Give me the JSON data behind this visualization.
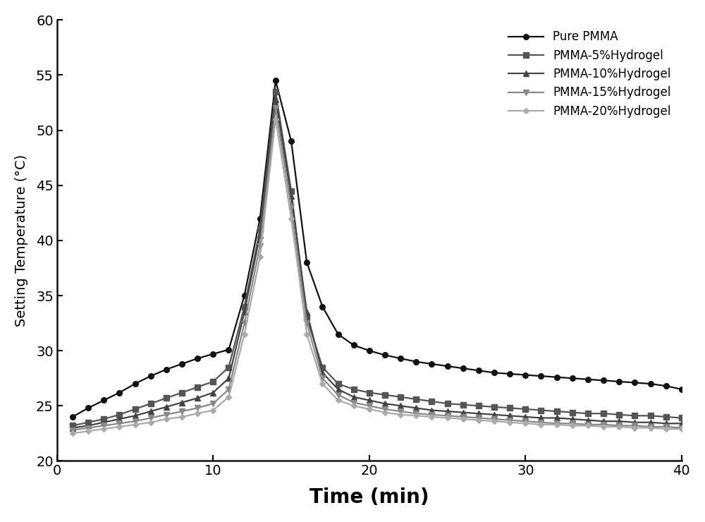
{
  "title": "",
  "xlabel": "Time (min)",
  "ylabel": "Setting Temperature (°C)",
  "xlim": [
    0,
    40
  ],
  "ylim": [
    20,
    60
  ],
  "xticks": [
    0,
    10,
    20,
    30,
    40
  ],
  "yticks": [
    20,
    25,
    30,
    35,
    40,
    45,
    50,
    55,
    60
  ],
  "series": [
    {
      "label": "Pure PMMA",
      "color": "#111111",
      "marker": "o",
      "markersize": 5.5,
      "linewidth": 1.6,
      "x": [
        1,
        2,
        3,
        4,
        5,
        6,
        7,
        8,
        9,
        10,
        11,
        12,
        13,
        14,
        15,
        16,
        17,
        18,
        19,
        20,
        21,
        22,
        23,
        24,
        25,
        26,
        27,
        28,
        29,
        30,
        31,
        32,
        33,
        34,
        35,
        36,
        37,
        38,
        39,
        40
      ],
      "y": [
        24.0,
        24.8,
        25.5,
        26.2,
        27.0,
        27.7,
        28.3,
        28.8,
        29.3,
        29.7,
        30.1,
        35.0,
        42.0,
        54.5,
        49.0,
        38.0,
        34.0,
        31.5,
        30.5,
        30.0,
        29.6,
        29.3,
        29.0,
        28.8,
        28.6,
        28.4,
        28.2,
        28.0,
        27.9,
        27.8,
        27.7,
        27.6,
        27.5,
        27.4,
        27.3,
        27.2,
        27.1,
        27.0,
        26.8,
        26.5
      ]
    },
    {
      "label": "PMMA-5%Hydrogel",
      "color": "#555555",
      "marker": "s",
      "markersize": 5.5,
      "linewidth": 1.6,
      "x": [
        1,
        2,
        3,
        4,
        5,
        6,
        7,
        8,
        9,
        10,
        11,
        12,
        13,
        14,
        15,
        16,
        17,
        18,
        19,
        20,
        21,
        22,
        23,
        24,
        25,
        26,
        27,
        28,
        29,
        30,
        31,
        32,
        33,
        34,
        35,
        36,
        37,
        38,
        39,
        40
      ],
      "y": [
        23.2,
        23.5,
        23.8,
        24.2,
        24.7,
        25.2,
        25.7,
        26.2,
        26.7,
        27.2,
        28.5,
        34.0,
        41.0,
        53.5,
        44.5,
        33.0,
        28.5,
        27.0,
        26.5,
        26.2,
        26.0,
        25.8,
        25.6,
        25.4,
        25.2,
        25.1,
        25.0,
        24.9,
        24.8,
        24.7,
        24.6,
        24.5,
        24.4,
        24.3,
        24.3,
        24.2,
        24.1,
        24.1,
        24.0,
        23.9
      ]
    },
    {
      "label": "PMMA-10%Hydrogel",
      "color": "#444444",
      "marker": "^",
      "markersize": 5.5,
      "linewidth": 1.6,
      "x": [
        1,
        2,
        3,
        4,
        5,
        6,
        7,
        8,
        9,
        10,
        11,
        12,
        13,
        14,
        15,
        16,
        17,
        18,
        19,
        20,
        21,
        22,
        23,
        24,
        25,
        26,
        27,
        28,
        29,
        30,
        31,
        32,
        33,
        34,
        35,
        36,
        37,
        38,
        39,
        40
      ],
      "y": [
        23.0,
        23.2,
        23.5,
        23.8,
        24.1,
        24.5,
        24.9,
        25.3,
        25.7,
        26.2,
        27.5,
        33.5,
        40.5,
        52.8,
        44.0,
        33.5,
        28.0,
        26.5,
        25.8,
        25.5,
        25.2,
        25.0,
        24.8,
        24.6,
        24.5,
        24.4,
        24.3,
        24.2,
        24.1,
        24.0,
        23.9,
        23.9,
        23.8,
        23.7,
        23.6,
        23.6,
        23.5,
        23.5,
        23.4,
        23.4
      ]
    },
    {
      "label": "PMMA-15%Hydrogel",
      "color": "#888888",
      "marker": "v",
      "markersize": 5.5,
      "linewidth": 1.6,
      "x": [
        1,
        2,
        3,
        4,
        5,
        6,
        7,
        8,
        9,
        10,
        11,
        12,
        13,
        14,
        15,
        16,
        17,
        18,
        19,
        20,
        21,
        22,
        23,
        24,
        25,
        26,
        27,
        28,
        29,
        30,
        31,
        32,
        33,
        34,
        35,
        36,
        37,
        38,
        39,
        40
      ],
      "y": [
        22.8,
        23.0,
        23.2,
        23.4,
        23.6,
        23.9,
        24.2,
        24.5,
        24.8,
        25.2,
        26.5,
        32.5,
        39.5,
        52.0,
        43.0,
        32.5,
        27.5,
        26.0,
        25.3,
        25.0,
        24.7,
        24.5,
        24.3,
        24.2,
        24.1,
        24.0,
        23.9,
        23.8,
        23.7,
        23.6,
        23.5,
        23.4,
        23.4,
        23.3,
        23.3,
        23.2,
        23.2,
        23.1,
        23.1,
        23.0
      ]
    },
    {
      "label": "PMMA-20%Hydrogel",
      "color": "#aaaaaa",
      "marker": "D",
      "markersize": 4.5,
      "linewidth": 1.6,
      "x": [
        1,
        2,
        3,
        4,
        5,
        6,
        7,
        8,
        9,
        10,
        11,
        12,
        13,
        14,
        15,
        16,
        17,
        18,
        19,
        20,
        21,
        22,
        23,
        24,
        25,
        26,
        27,
        28,
        29,
        30,
        31,
        32,
        33,
        34,
        35,
        36,
        37,
        38,
        39,
        40
      ],
      "y": [
        22.5,
        22.7,
        22.9,
        23.1,
        23.3,
        23.5,
        23.8,
        24.0,
        24.3,
        24.6,
        25.8,
        31.5,
        38.5,
        51.0,
        42.0,
        31.5,
        27.0,
        25.5,
        25.0,
        24.7,
        24.4,
        24.2,
        24.1,
        24.0,
        23.9,
        23.8,
        23.7,
        23.6,
        23.5,
        23.4,
        23.3,
        23.3,
        23.2,
        23.2,
        23.1,
        23.1,
        23.0,
        23.0,
        22.9,
        22.9
      ]
    }
  ],
  "background_color": "#ffffff",
  "legend_loc": "upper right",
  "xlabel_fontsize": 20,
  "ylabel_fontsize": 14,
  "tick_fontsize": 14,
  "legend_fontsize": 12
}
